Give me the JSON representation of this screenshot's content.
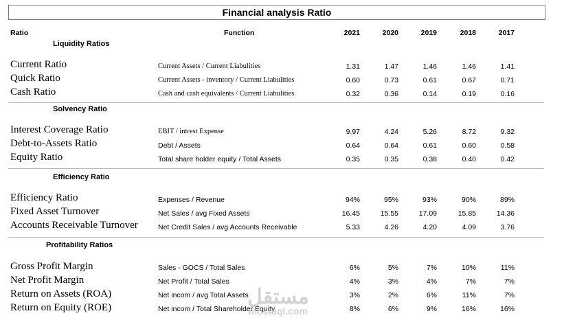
{
  "title": "Financial analysis Ratio",
  "header": {
    "ratio": "Ratio",
    "function": "Function",
    "years": [
      "2021",
      "2020",
      "2019",
      "2018",
      "2017"
    ]
  },
  "sections": [
    {
      "name": "Liquidity Ratios",
      "rows": [
        {
          "ratio": "Current Ratio",
          "function": "Current Assets / Current Liabulities",
          "values": [
            "1.31",
            "1.47",
            "1.46",
            "1.46",
            "1.41"
          ]
        },
        {
          "ratio": "Quick Ratio",
          "function": "Current Assets - inventory / Current Liabulities",
          "values": [
            "0.60",
            "0.73",
            "0.61",
            "0.67",
            "0.71"
          ]
        },
        {
          "ratio": "Cash Ratio",
          "function": "Cash and cash equivalents / Current Liabulities",
          "values": [
            "0.32",
            "0.36",
            "0.14",
            "0.19",
            "0.16"
          ]
        }
      ]
    },
    {
      "name": "Solvency Ratio",
      "rows": [
        {
          "ratio": "Interest Coverage Ratio",
          "function": "EBIT / intrest Expense",
          "values": [
            "9.97",
            "4.24",
            "5.26",
            "8.72",
            "9.32"
          ]
        },
        {
          "ratio": "Debt-to-Assets Ratio",
          "function": "Debt / Assets",
          "values": [
            "0.64",
            "0.64",
            "0.61",
            "0.60",
            "0.58"
          ]
        },
        {
          "ratio": "Equity Ratio",
          "function": "Total share holder equity / Total Assets",
          "values": [
            "0.35",
            "0.35",
            "0.38",
            "0.40",
            "0.42"
          ]
        }
      ]
    },
    {
      "name": "Efficiency Ratio",
      "rows": [
        {
          "ratio": "Efficiency Ratio",
          "function": "Expenses / Revenue",
          "values": [
            "94%",
            "95%",
            "93%",
            "90%",
            "89%"
          ]
        },
        {
          "ratio": "Fixed Asset Turnover",
          "function": "Net Sales / avg Fixed Assets",
          "values": [
            "16.45",
            "15.55",
            "17.09",
            "15.85",
            "14.36"
          ]
        },
        {
          "ratio": "Accounts Receivable Turnover",
          "function": "Net Credit Sales / avg Accounts Receivable",
          "values": [
            "5.33",
            "4.26",
            "4.20",
            "4.09",
            "3.76"
          ]
        }
      ]
    },
    {
      "name": "Profitability Ratios",
      "rows": [
        {
          "ratio": "Gross Profit Margin",
          "function": "Sales - GOCS / Total Sales",
          "values": [
            "6%",
            "5%",
            "7%",
            "10%",
            "11%"
          ]
        },
        {
          "ratio": "Net Profit Margin",
          "function": "Net Profit / Total Sales",
          "values": [
            "4%",
            "3%",
            "4%",
            "7%",
            "7%"
          ]
        },
        {
          "ratio": "Return on Assets (ROA)",
          "function": "Net incom / avg Total Assets",
          "values": [
            "3%",
            "2%",
            "6%",
            "11%",
            "7%"
          ]
        },
        {
          "ratio": "Return on Equity (ROE)",
          "function": "Net incom / Total Shareholder Equity",
          "values": [
            "8%",
            "6%",
            "9%",
            "16%",
            "16%"
          ]
        }
      ]
    }
  ],
  "watermark": {
    "arabic": "مستقل",
    "latin": "mostaql.com"
  }
}
